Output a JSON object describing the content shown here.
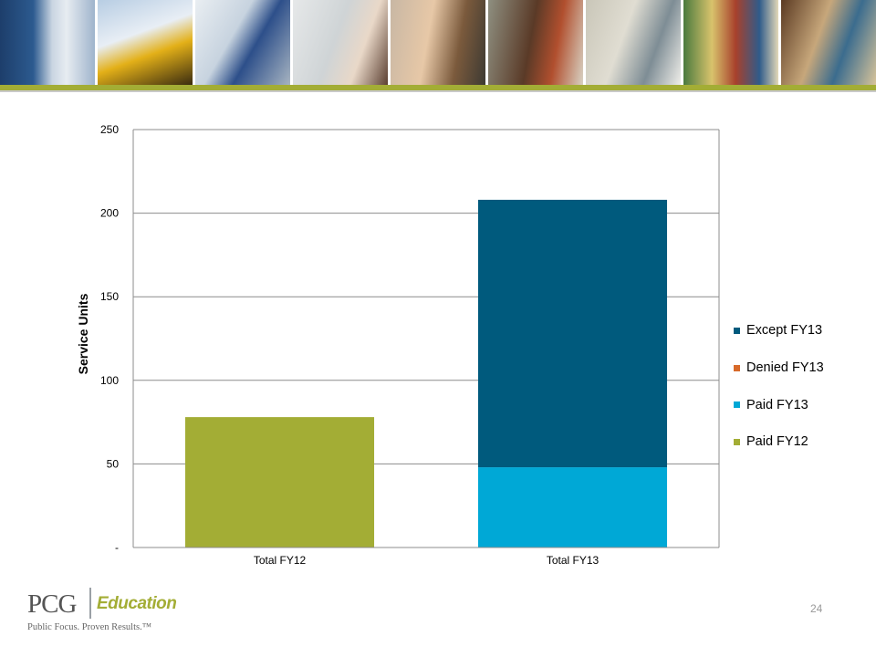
{
  "header": {
    "photos": [
      "school-hallway-photo",
      "school-bus-photo",
      "teacher-photo",
      "student-whiteboard-photo",
      "smiling-woman-photo",
      "smiling-man-photo",
      "student-writing-photo",
      "bookshelf-photo",
      "globe-photo"
    ],
    "accent_color": "#a3ad35"
  },
  "chart_data": {
    "type": "bar",
    "stacked": true,
    "categories": [
      "Total FY12",
      "Total FY13"
    ],
    "series": [
      {
        "name": "Paid FY12",
        "color": "#a3ad35",
        "values": [
          78,
          0
        ]
      },
      {
        "name": "Paid FY13",
        "color": "#00a8d6",
        "values": [
          0,
          48
        ]
      },
      {
        "name": "Denied FY13",
        "color": "#d86a2a",
        "values": [
          0,
          0
        ]
      },
      {
        "name": "Except FY13",
        "color": "#005a7d",
        "values": [
          0,
          160
        ]
      }
    ],
    "legend_order": [
      "Except FY13",
      "Denied FY13",
      "Paid FY13",
      "Paid FY12"
    ],
    "legend_position": "right",
    "ylabel": "Service Units",
    "xlabel": "",
    "ylim": [
      0,
      250
    ],
    "yticks": [
      0,
      50,
      100,
      150,
      200,
      250
    ],
    "ytick_labels": [
      "-",
      "50",
      "100",
      "150",
      "200",
      "250"
    ],
    "grid": true
  },
  "footer": {
    "logo_pcg": "PCG",
    "logo_education": "Education",
    "tagline": "Public Focus. Proven Results.™",
    "page_number": "24"
  }
}
